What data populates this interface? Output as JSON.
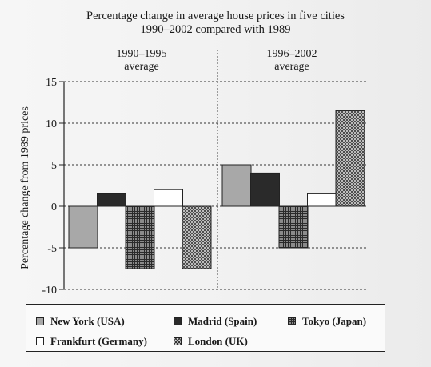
{
  "chart_data": {
    "type": "bar",
    "title": "Percentage change in average house prices in five cities",
    "subtitle": "1990–2002 compared with 1989",
    "ylabel": "Percentage change from 1989 prices",
    "xlabel": "",
    "ylim": [
      -10,
      15
    ],
    "yticks": [
      "15",
      "10",
      "5",
      "0",
      "-5",
      "-10"
    ],
    "ytick_values": [
      15,
      10,
      5,
      0,
      -5,
      -10
    ],
    "grid": "dashed horizontal",
    "legend_position": "bottom",
    "categories": [
      "1990–1995 average",
      "1996–2002 average"
    ],
    "category_labels": [
      [
        "1990–1995",
        "average"
      ],
      [
        "1996–2002",
        "average"
      ]
    ],
    "series": [
      {
        "name": "New York (USA)",
        "key": "ny",
        "values": [
          -5,
          5
        ]
      },
      {
        "name": "Madrid (Spain)",
        "key": "madrid",
        "values": [
          1.5,
          4
        ]
      },
      {
        "name": "Tokyo (Japan)",
        "key": "tokyo",
        "values": [
          -7.5,
          -5
        ]
      },
      {
        "name": "Frankfurt (Germany)",
        "key": "frankfurt",
        "values": [
          2,
          1.5
        ]
      },
      {
        "name": "London (UK)",
        "key": "london",
        "values": [
          -7.5,
          11.5
        ]
      }
    ],
    "colors": {
      "ny": "#a8a8a8",
      "madrid": "#2a2a2a",
      "tokyo": "#8a8a8a",
      "frankfurt": "#ffffff",
      "london": "#d8d8d8"
    }
  },
  "legend_items": [
    "New York (USA)",
    "Madrid (Spain)",
    "Tokyo (Japan)",
    "Frankfurt (Germany)",
    "London (UK)"
  ]
}
